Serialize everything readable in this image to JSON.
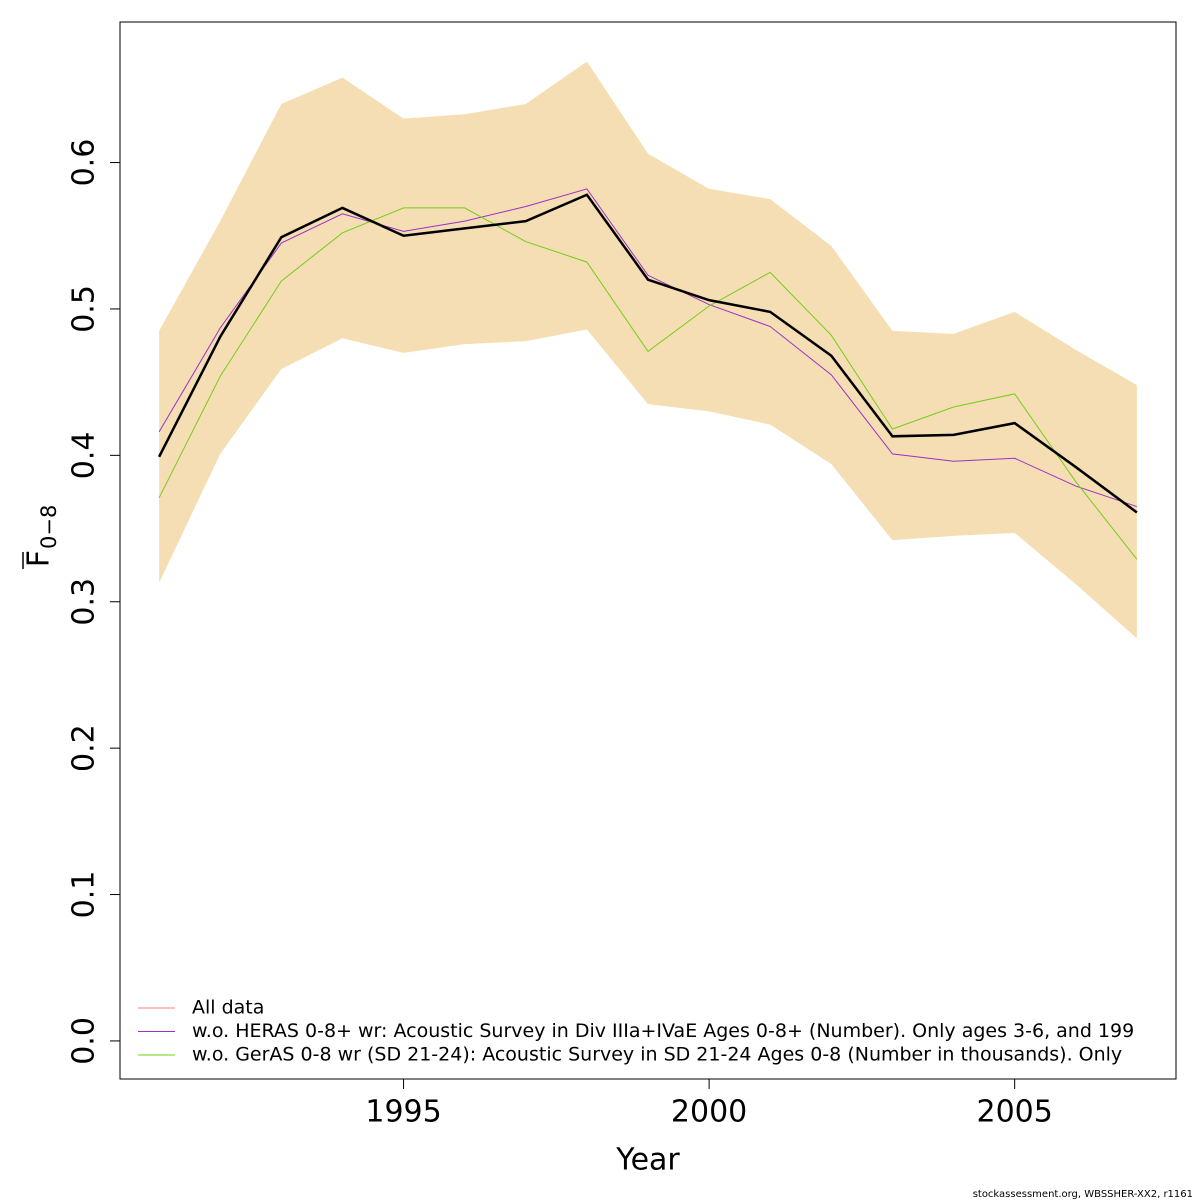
{
  "chart_data": {
    "type": "line",
    "x": [
      1991,
      1992,
      1993,
      1994,
      1995,
      1996,
      1997,
      1998,
      1999,
      2000,
      2001,
      2002,
      2003,
      2004,
      2005,
      2006,
      2007
    ],
    "xlim": [
      1990.36,
      2007.64
    ],
    "xticks": [
      1995,
      2000,
      2005
    ],
    "ylim": [
      -0.026,
      0.696
    ],
    "yticks": [
      {
        "value": 0,
        "label": "0.0"
      },
      0.1,
      0.2,
      0.3,
      0.4,
      0.5,
      0.6
    ],
    "xlabel": "Year",
    "ylabel": "F",
    "ylabel_sub": "0−8",
    "band": {
      "color": "#f5deb3",
      "upper": [
        0.485,
        0.56,
        0.64,
        0.658,
        0.63,
        0.633,
        0.64,
        0.669,
        0.606,
        0.582,
        0.575,
        0.543,
        0.485,
        0.483,
        0.498,
        0.472,
        0.448
      ],
      "lower": [
        0.313,
        0.401,
        0.459,
        0.48,
        0.47,
        0.476,
        0.478,
        0.486,
        0.435,
        0.43,
        0.421,
        0.394,
        0.342,
        0.345,
        0.347,
        0.312,
        0.275
      ]
    },
    "series": [
      {
        "name": "All data",
        "color": "#f08080",
        "overlay_color": "#000000",
        "values": [
          0.399,
          0.481,
          0.549,
          0.569,
          0.55,
          0.555,
          0.56,
          0.578,
          0.52,
          0.506,
          0.498,
          0.468,
          0.413,
          0.414,
          0.422,
          0.392,
          0.361
        ]
      },
      {
        "name": "w.o. HERAS 0-8+ wr: Acoustic Survey in Div IIIa+IVaE Ages 0-8+ (Number). Only ages 3-6, and 199",
        "color": "#9b30c8",
        "values": [
          0.416,
          0.487,
          0.545,
          0.565,
          0.553,
          0.56,
          0.57,
          0.582,
          0.523,
          0.503,
          0.488,
          0.455,
          0.401,
          0.396,
          0.398,
          0.379,
          0.365
        ]
      },
      {
        "name": "w.o. GerAS 0-8 wr (SD 21-24): Acoustic Survey in SD 21-24 Ages 0-8 (Number in thousands). Only",
        "color": "#76cc1a",
        "values": [
          0.371,
          0.454,
          0.519,
          0.552,
          0.569,
          0.569,
          0.546,
          0.532,
          0.471,
          0.502,
          0.525,
          0.482,
          0.418,
          0.433,
          0.442,
          0.382,
          0.329
        ]
      }
    ],
    "footer": "stockassessment.org, WBSSHER-XX2, r1161"
  }
}
